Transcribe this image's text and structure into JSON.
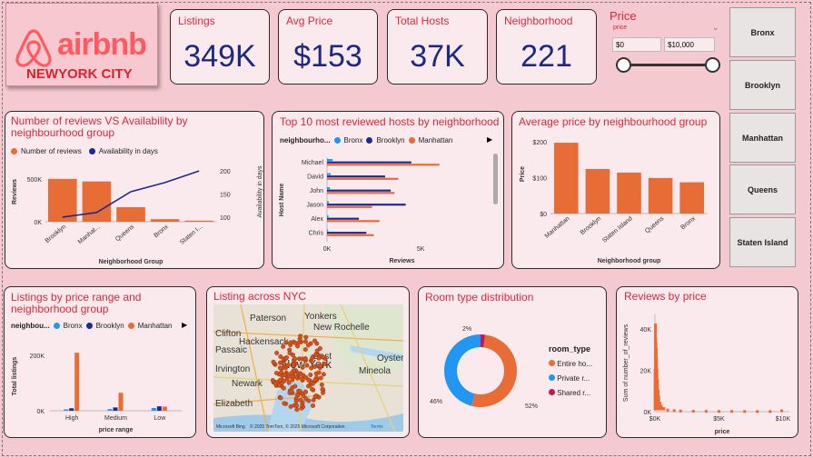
{
  "logo": {
    "brand": "airbnb",
    "city": "NEWYORK CITY"
  },
  "kpis": [
    {
      "label": "Listings",
      "value": "349K"
    },
    {
      "label": "Avg Price",
      "value": "$153"
    },
    {
      "label": "Total Hosts",
      "value": "37K"
    },
    {
      "label": "Neighborhood",
      "value": "221"
    }
  ],
  "price_slicer": {
    "title": "Price",
    "field": "price",
    "min": "$0",
    "max": "$10,000"
  },
  "borough_slicer": [
    "Bronx",
    "Brooklyn",
    "Manhattan",
    "Queens",
    "Staten Island"
  ],
  "colors": {
    "orange": "#e86c35",
    "navy": "#1d2a8f",
    "blue": "#2196f3",
    "magenta": "#c2185b",
    "title_red": "#d9273c"
  },
  "charts": {
    "reviews_availability": {
      "title": "Number of reviews VS Availability by neighbourhood group",
      "legend": [
        "Number of reviews",
        "Availability in days"
      ],
      "ylabel": "Reviews",
      "y2label": "Availability in days",
      "xlabel": "Neighborhood Group",
      "y_ticks": [
        "500K",
        "0K"
      ],
      "y2_ticks": [
        "200",
        "150",
        "100"
      ],
      "categories": [
        "Brooklyn",
        "Manhat...",
        "Queens",
        "Bronx",
        "Staten I..."
      ]
    },
    "top_hosts": {
      "title": "Top 10 most reviewed hosts by neighborhood",
      "legend_field": "neighbourho...",
      "legend": [
        "Bronx",
        "Brooklyn",
        "Manhattan"
      ],
      "ylabel": "Host Name",
      "xlabel": "Reviews",
      "x_ticks": [
        "0K",
        "5K"
      ],
      "hosts": [
        "Michael",
        "David",
        "John",
        "Jason",
        "Alex",
        "Chris"
      ]
    },
    "avg_price": {
      "title": "Average price by neighbourhood group",
      "ylabel": "Price",
      "xlabel": "Neighborhood group",
      "y_ticks": [
        "$200",
        "$100",
        "$0"
      ],
      "categories": [
        "Manhattan",
        "Brooklyn",
        "Staten Island",
        "Queens",
        "Bronx"
      ]
    },
    "price_range": {
      "title": "Listings by price range and neighborhood group",
      "legend_field": "neighbou...",
      "legend": [
        "Bronx",
        "Brooklyn",
        "Manhattan"
      ],
      "ylabel": "Total listings",
      "xlabel": "price range",
      "y_ticks": [
        "200K",
        "0K"
      ],
      "categories": [
        "High",
        "Medium",
        "Low"
      ]
    },
    "map": {
      "title": "Listing across NYC",
      "places": [
        "Paterson",
        "Yonkers",
        "Clifton",
        "Hackensack",
        "New Rochelle",
        "Passaic",
        "Irvington",
        "Newark",
        "Oyster",
        "Mineola",
        "Elizabeth",
        "New York",
        "East"
      ],
      "credit": "© 2025 TomTom, © 2025 Microsoft Corporation",
      "terms": "Terms",
      "ms_logo": "Microsoft Bing"
    },
    "room_type": {
      "title": "Room type distribution",
      "legend_title": "room_type",
      "legend": [
        "Entire ho...",
        "Private r...",
        "Shared r..."
      ],
      "labels": [
        "52%",
        "46%",
        "2%"
      ]
    },
    "reviews_price": {
      "title": "Reviews by price",
      "ylabel": "Sum of number_of_reviews",
      "xlabel": "price",
      "y_ticks": [
        "40K",
        "20K",
        "0K"
      ],
      "x_ticks": [
        "$0K",
        "$5K",
        "$10K"
      ]
    }
  },
  "chart_data": [
    {
      "type": "bar",
      "title": "Number of reviews VS Availability by neighbourhood group",
      "categories": [
        "Brooklyn",
        "Manhattan",
        "Queens",
        "Bronx",
        "Staten Island"
      ],
      "series": [
        {
          "name": "Number of reviews",
          "type": "bar",
          "values": [
            500000,
            470000,
            170000,
            30000,
            12000
          ]
        },
        {
          "name": "Availability in days",
          "type": "line",
          "values": [
            100,
            110,
            155,
            175,
            200
          ]
        }
      ],
      "ylabel": "Reviews",
      "y2label": "Availability in days",
      "ylim": [
        0,
        700000
      ],
      "y2lim": [
        90,
        220
      ]
    },
    {
      "type": "bar",
      "title": "Top 10 most reviewed hosts by neighborhood",
      "orientation": "horizontal",
      "categories": [
        "Michael",
        "David",
        "John",
        "Jason",
        "Alex",
        "Chris"
      ],
      "series": [
        {
          "name": "Bronx",
          "values": [
            300,
            200,
            150,
            100,
            80,
            60
          ]
        },
        {
          "name": "Brooklyn",
          "values": [
            4500,
            3100,
            3400,
            4200,
            1700,
            2100
          ]
        },
        {
          "name": "Manhattan",
          "values": [
            6000,
            3800,
            3600,
            2400,
            2800,
            2500
          ]
        }
      ],
      "xlabel": "Reviews",
      "xlim": [
        0,
        8000
      ]
    },
    {
      "type": "bar",
      "title": "Average price by neighbourhood group",
      "categories": [
        "Manhattan",
        "Brooklyn",
        "Staten Island",
        "Queens",
        "Bronx"
      ],
      "values": [
        197,
        124,
        114,
        99,
        87
      ],
      "ylabel": "Price",
      "ylim": [
        0,
        220
      ]
    },
    {
      "type": "bar",
      "title": "Listings by price range and neighborhood group",
      "categories": [
        "High",
        "Medium",
        "Low"
      ],
      "series": [
        {
          "name": "Bronx",
          "values": [
            5000,
            6000,
            10000
          ]
        },
        {
          "name": "Brooklyn",
          "values": [
            9000,
            12000,
            16000
          ]
        },
        {
          "name": "Manhattan",
          "values": [
            210000,
            65000,
            15000
          ]
        }
      ],
      "ylabel": "Total listings",
      "ylim": [
        0,
        250000
      ]
    },
    {
      "type": "pie",
      "title": "Room type distribution",
      "categories": [
        "Entire home/apt",
        "Private room",
        "Shared room"
      ],
      "values": [
        52,
        46,
        2
      ]
    },
    {
      "type": "scatter",
      "title": "Reviews by price",
      "x": [
        10,
        40,
        60,
        80,
        100,
        130,
        160,
        200,
        250,
        300,
        400,
        500,
        700,
        1000,
        1500,
        2000,
        3000,
        4000,
        5000,
        6000,
        7000,
        8000,
        9000,
        9900
      ],
      "y": [
        20000,
        42000,
        35000,
        33000,
        30000,
        25000,
        20000,
        15000,
        10000,
        7000,
        4000,
        2500,
        1500,
        800,
        500,
        300,
        200,
        150,
        120,
        100,
        80,
        60,
        50,
        400
      ],
      "xlabel": "price",
      "ylabel": "Sum of number_of_reviews",
      "xlim": [
        0,
        10500
      ],
      "ylim": [
        0,
        47000
      ]
    }
  ]
}
